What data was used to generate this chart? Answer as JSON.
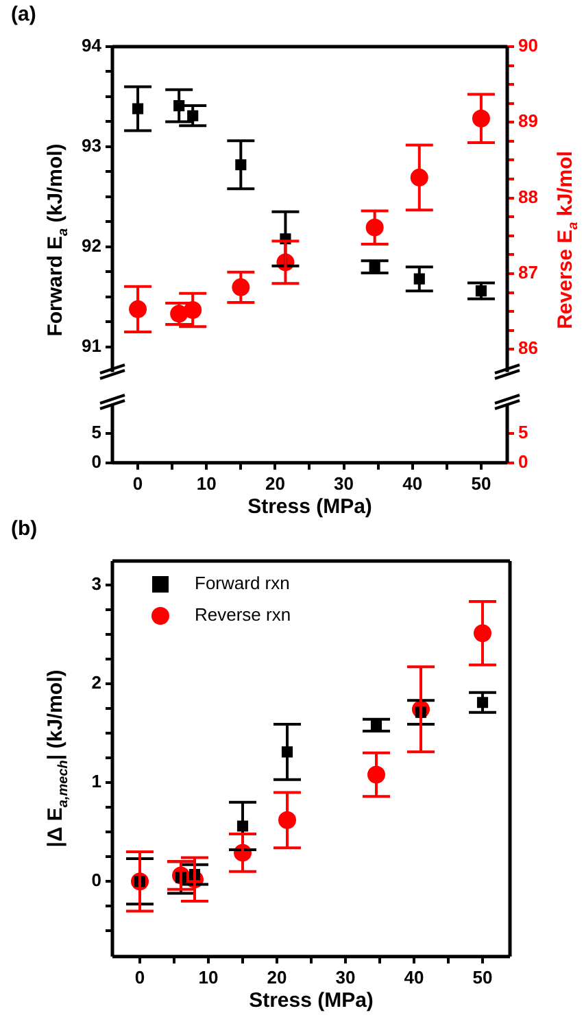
{
  "chart_data": [
    {
      "type": "scatter",
      "title": "(a)",
      "ylabel": "Forward E$_{a}$ (kJ/mol)",
      "y2label": "Reverse E$_{a}$ kJ/mol",
      "x": [
        0,
        6,
        8,
        15,
        21.5,
        34.5,
        41,
        50
      ],
      "xlim": [
        -3.7,
        53.8
      ],
      "ylim": [
        90.75,
        94
      ],
      "y2lim": [
        85.7,
        90
      ],
      "yticks": [
        91,
        {
          "value": 91.25,
          "label": null
        },
        {
          "value": 91.5,
          "label": null
        },
        {
          "value": 91.75,
          "label": null
        },
        92,
        {
          "value": 92.25,
          "label": null
        },
        {
          "value": 92.5,
          "label": null
        },
        {
          "value": 92.75,
          "label": null
        },
        93,
        {
          "value": 93.25,
          "label": null
        },
        {
          "value": 93.5,
          "label": null
        },
        {
          "value": 93.75,
          "label": null
        },
        94
      ],
      "y2ticks": [
        86,
        {
          "value": 86.25,
          "label": null
        },
        {
          "value": 86.5,
          "label": null
        },
        {
          "value": 86.75,
          "label": null
        },
        87,
        {
          "value": 87.25,
          "label": null
        },
        {
          "value": 87.5,
          "label": null
        },
        {
          "value": 87.75,
          "label": null
        },
        88,
        {
          "value": 88.25,
          "label": null
        },
        {
          "value": 88.5,
          "label": null
        },
        {
          "value": 88.75,
          "label": null
        },
        89,
        {
          "value": 89.25,
          "label": null
        },
        {
          "value": 89.5,
          "label": null
        },
        {
          "value": 89.75,
          "label": null
        },
        90
      ],
      "tick_labels": "y",
      "grid": false,
      "series": [
        {
          "color": "#000000",
          "marker": "square",
          "values": [
            93.38,
            93.41,
            93.31,
            92.82,
            92.08,
            91.8,
            91.68,
            91.56
          ],
          "errors": [
            0.22,
            0.16,
            0.1,
            0.24,
            0.27,
            0.06,
            0.12,
            0.08
          ]
        },
        {
          "color": "#ff0000",
          "marker": "circle",
          "axis": "y2",
          "values": [
            86.53,
            86.47,
            86.52,
            86.82,
            87.15,
            87.61,
            88.27,
            89.05
          ],
          "errors": [
            0.3,
            0.14,
            0.22,
            0.2,
            0.28,
            0.22,
            0.43,
            0.32
          ]
        }
      ]
    },
    {
      "type": "scatter",
      "xlabel": "Stress (MPa)",
      "xlim": [
        -3.7,
        53.8
      ],
      "ylim": [
        0,
        10
      ],
      "y2lim": [
        0,
        10
      ],
      "yticks": [
        0,
        5
      ],
      "y2ticks": [
        0,
        5
      ],
      "xticks": [
        0,
        {
          "value": 5,
          "label": null
        },
        10,
        {
          "value": 15,
          "label": null
        },
        20,
        {
          "value": 25,
          "label": null
        },
        30,
        {
          "value": 35,
          "label": null
        },
        40,
        {
          "value": 45,
          "label": null
        },
        50
      ],
      "grid": false
    },
    {
      "type": "scatter",
      "title": "(b)",
      "xlabel": "Stress (MPa)",
      "ylabel": "|Δ E$_{a,mech}$| (kJ/mol)",
      "x": [
        0,
        6,
        8,
        15,
        21.5,
        34.5,
        41,
        50
      ],
      "xlim": [
        -4,
        54
      ],
      "ylim": [
        -0.76,
        3.24
      ],
      "xticks": [
        0,
        {
          "value": 5,
          "label": null
        },
        10,
        {
          "value": 15,
          "label": null
        },
        20,
        {
          "value": 25,
          "label": null
        },
        30,
        {
          "value": 35,
          "label": null
        },
        40,
        {
          "value": 45,
          "label": null
        },
        50
      ],
      "yticks": [
        {
          "value": -0.5,
          "label": null
        },
        {
          "value": -0.25,
          "label": null
        },
        0,
        {
          "value": 0.25,
          "label": null
        },
        {
          "value": 0.5,
          "label": null
        },
        {
          "value": 0.75,
          "label": null
        },
        1,
        {
          "value": 1.25,
          "label": null
        },
        {
          "value": 1.5,
          "label": null
        },
        {
          "value": 1.75,
          "label": null
        },
        2,
        {
          "value": 2.25,
          "label": null
        },
        {
          "value": 2.5,
          "label": null
        },
        {
          "value": 2.75,
          "label": null
        },
        3
      ],
      "grid": false,
      "legend": "top left",
      "series": [
        {
          "name": "Forward rxn",
          "color": "#000000",
          "marker": "square",
          "values": [
            0,
            0.04,
            0.07,
            0.56,
            1.31,
            1.58,
            1.71,
            1.81
          ],
          "errors": [
            0.23,
            0.16,
            0.1,
            0.24,
            0.28,
            0.06,
            0.12,
            0.1
          ]
        },
        {
          "name": "Reverse rxn",
          "color": "#ff0000",
          "marker": "circle",
          "values": [
            0,
            0.06,
            0.02,
            0.29,
            0.62,
            1.08,
            1.74,
            2.51
          ],
          "errors": [
            0.3,
            0.14,
            0.22,
            0.19,
            0.28,
            0.22,
            0.43,
            0.32
          ]
        }
      ]
    }
  ]
}
